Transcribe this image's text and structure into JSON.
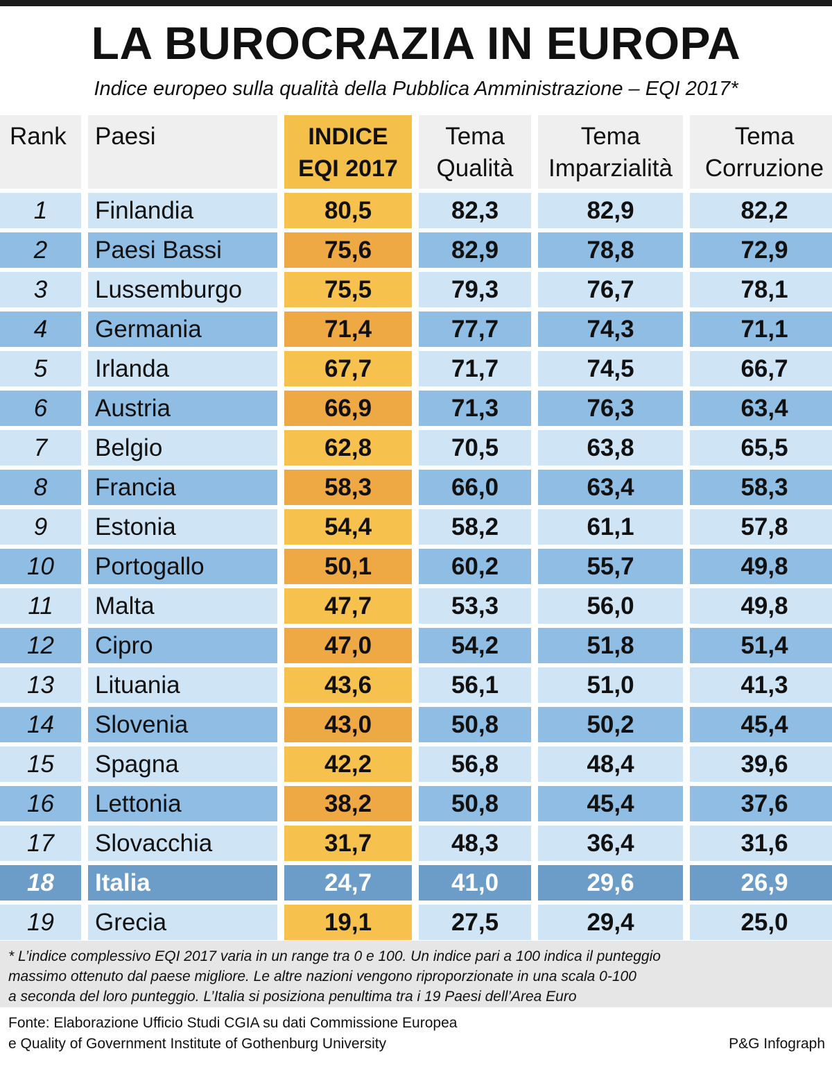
{
  "title": "LA BUROCRAZIA IN EUROPA",
  "subtitle": "Indice europeo sulla qualità della Pubblica Amministrazione – EQI 2017*",
  "colors": {
    "eqi_light": "#f6c14d",
    "eqi_dark": "#eea844",
    "row_light": "#cfe4f5",
    "row_dark": "#8fbde3",
    "highlight": "#6c9cc8"
  },
  "chart_data": {
    "type": "table",
    "columns": [
      "Rank",
      "Paesi",
      "INDICE EQI 2017",
      "Tema Qualità",
      "Tema Imparzialità",
      "Tema Corruzione"
    ],
    "header": {
      "rank": "Rank",
      "paesi": "Paesi",
      "eqi_1": "INDICE",
      "eqi_2": "EQI 2017",
      "q_1": "Tema",
      "q_2": "Qualità",
      "i_1": "Tema",
      "i_2": "Imparzialità",
      "c_1": "Tema",
      "c_2": "Corruzione"
    },
    "highlight_row": "Italia",
    "rows": [
      {
        "rank": "1",
        "country": "Finlandia",
        "eqi": "80,5",
        "qualita": "82,3",
        "imparzialita": "82,9",
        "corruzione": "82,2"
      },
      {
        "rank": "2",
        "country": "Paesi Bassi",
        "eqi": "75,6",
        "qualita": "82,9",
        "imparzialita": "78,8",
        "corruzione": "72,9"
      },
      {
        "rank": "3",
        "country": "Lussemburgo",
        "eqi": "75,5",
        "qualita": "79,3",
        "imparzialita": "76,7",
        "corruzione": "78,1"
      },
      {
        "rank": "4",
        "country": "Germania",
        "eqi": "71,4",
        "qualita": "77,7",
        "imparzialita": "74,3",
        "corruzione": "71,1"
      },
      {
        "rank": "5",
        "country": "Irlanda",
        "eqi": "67,7",
        "qualita": "71,7",
        "imparzialita": "74,5",
        "corruzione": "66,7"
      },
      {
        "rank": "6",
        "country": "Austria",
        "eqi": "66,9",
        "qualita": "71,3",
        "imparzialita": "76,3",
        "corruzione": "63,4"
      },
      {
        "rank": "7",
        "country": "Belgio",
        "eqi": "62,8",
        "qualita": "70,5",
        "imparzialita": "63,8",
        "corruzione": "65,5"
      },
      {
        "rank": "8",
        "country": "Francia",
        "eqi": "58,3",
        "qualita": "66,0",
        "imparzialita": "63,4",
        "corruzione": "58,3"
      },
      {
        "rank": "9",
        "country": "Estonia",
        "eqi": "54,4",
        "qualita": "58,2",
        "imparzialita": "61,1",
        "corruzione": "57,8"
      },
      {
        "rank": "10",
        "country": "Portogallo",
        "eqi": "50,1",
        "qualita": "60,2",
        "imparzialita": "55,7",
        "corruzione": "49,8"
      },
      {
        "rank": "11",
        "country": "Malta",
        "eqi": "47,7",
        "qualita": "53,3",
        "imparzialita": "56,0",
        "corruzione": "49,8"
      },
      {
        "rank": "12",
        "country": "Cipro",
        "eqi": "47,0",
        "qualita": "54,2",
        "imparzialita": "51,8",
        "corruzione": "51,4"
      },
      {
        "rank": "13",
        "country": "Lituania",
        "eqi": "43,6",
        "qualita": "56,1",
        "imparzialita": "51,0",
        "corruzione": "41,3"
      },
      {
        "rank": "14",
        "country": "Slovenia",
        "eqi": "43,0",
        "qualita": "50,8",
        "imparzialita": "50,2",
        "corruzione": "45,4"
      },
      {
        "rank": "15",
        "country": "Spagna",
        "eqi": "42,2",
        "qualita": "56,8",
        "imparzialita": "48,4",
        "corruzione": "39,6"
      },
      {
        "rank": "16",
        "country": "Lettonia",
        "eqi": "38,2",
        "qualita": "50,8",
        "imparzialita": "45,4",
        "corruzione": "37,6"
      },
      {
        "rank": "17",
        "country": "Slovacchia",
        "eqi": "31,7",
        "qualita": "48,3",
        "imparzialita": "36,4",
        "corruzione": "31,6"
      },
      {
        "rank": "18",
        "country": "Italia",
        "eqi": "24,7",
        "qualita": "41,0",
        "imparzialita": "29,6",
        "corruzione": "26,9"
      },
      {
        "rank": "19",
        "country": "Grecia",
        "eqi": "19,1",
        "qualita": "27,5",
        "imparzialita": "29,4",
        "corruzione": "25,0"
      }
    ]
  },
  "notes": [
    "* L’indice complessivo EQI 2017 varia in un range tra 0 e 100. Un indice pari a 100 indica il punteggio",
    "massimo ottenuto dal paese migliore. Le altre nazioni vengono riproporzionate in una scala 0-100",
    "a seconda del loro punteggio. L’Italia si posiziona penultima tra i 19 Paesi dell’Area Euro"
  ],
  "source": [
    "Fonte: Elaborazione Ufficio Studi CGIA su dati Commissione Europea",
    "e Quality of Government Institute of Gothenburg University"
  ],
  "credit": "P&G Infograph"
}
